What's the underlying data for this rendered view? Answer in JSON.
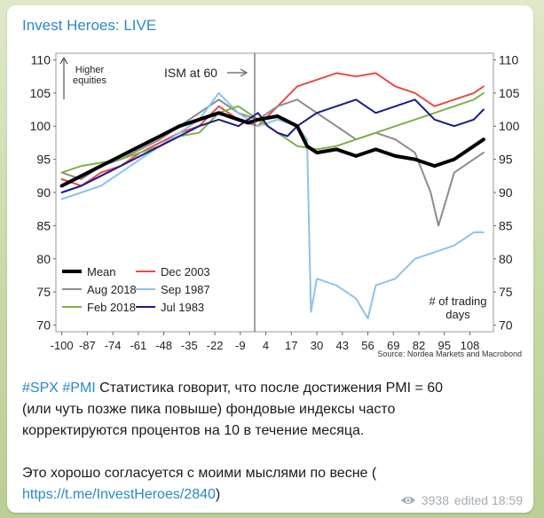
{
  "post": {
    "channel_title": "Invest Heroes: LIVE",
    "hashtags": [
      "#SPX",
      "#PMI"
    ],
    "body_line1": "Статистика говорит, что после достижения PMI = 60",
    "body_line2": "(или чуть позже пика повыше) фондовые индексы часто",
    "body_line3": "корректируются процентов на 10 в течение месяца.",
    "body_line4": "Это хорошо согласуется с моими мыслями по весне (",
    "link": "https://t.me/InvestHeroes/2840",
    "link_suffix": ")",
    "views": "3938",
    "edited": "edited 18:59"
  },
  "chart_data": {
    "type": "line",
    "x_ticks": [
      -100,
      -87,
      -74,
      -61,
      -48,
      -35,
      -22,
      -9,
      4,
      17,
      30,
      43,
      56,
      69,
      82,
      95,
      108
    ],
    "y_ticks": [
      70,
      75,
      80,
      85,
      90,
      95,
      100,
      105,
      110
    ],
    "ylim": [
      69,
      111
    ],
    "xlim": [
      -103,
      120
    ],
    "left_annotation": "Higher\nequities",
    "top_annotation": "ISM at 60",
    "corner_annotation": "# of trading\ndays",
    "source": "Source: Nordea Markets and Macrobond",
    "series": [
      {
        "name": "Mean",
        "color": "#000000",
        "width": 4,
        "x": [
          -100,
          -90,
          -80,
          -70,
          -60,
          -50,
          -40,
          -30,
          -20,
          -10,
          -5,
          0,
          10,
          20,
          25,
          30,
          40,
          50,
          60,
          70,
          80,
          90,
          100,
          110,
          115
        ],
        "y": [
          91,
          92.5,
          94,
          95.5,
          97,
          98.5,
          100,
          101,
          102,
          101,
          100.5,
          101,
          101.5,
          100,
          97,
          96,
          96.5,
          95.5,
          96.5,
          95.5,
          95,
          94,
          95,
          97,
          98
        ]
      },
      {
        "name": "Dec 2003",
        "color": "#e84a4a",
        "width": 2,
        "x": [
          -100,
          -90,
          -80,
          -70,
          -60,
          -50,
          -40,
          -30,
          -20,
          -10,
          0,
          10,
          20,
          30,
          40,
          50,
          60,
          70,
          80,
          90,
          100,
          110,
          115
        ],
        "y": [
          92,
          91,
          93,
          94,
          96,
          97.5,
          99,
          100,
          103,
          101,
          100,
          103,
          106,
          107,
          108,
          107.5,
          108,
          106,
          105,
          103,
          104,
          105,
          106
        ]
      },
      {
        "name": "Aug 2018",
        "color": "#8c8c8c",
        "width": 2,
        "x": [
          -100,
          -90,
          -80,
          -70,
          -60,
          -50,
          -40,
          -30,
          -20,
          -10,
          0,
          10,
          20,
          30,
          40,
          50,
          60,
          70,
          80,
          88,
          92,
          100,
          110,
          115
        ],
        "y": [
          93,
          92,
          94,
          95,
          96.5,
          98,
          100,
          102,
          104,
          102,
          101,
          103,
          104,
          102,
          100,
          98,
          99,
          98,
          96,
          90,
          85,
          93,
          95,
          96
        ]
      },
      {
        "name": "Sep 1987",
        "color": "#8cc4e8",
        "width": 2,
        "x": [
          -100,
          -90,
          -80,
          -70,
          -60,
          -50,
          -40,
          -30,
          -20,
          -10,
          0,
          10,
          20,
          25,
          27,
          30,
          40,
          50,
          56,
          60,
          70,
          80,
          90,
          100,
          110,
          115
        ],
        "y": [
          89,
          90,
          91,
          93,
          95,
          97,
          99,
          101,
          105,
          102,
          100,
          101,
          100,
          98,
          72,
          77,
          76,
          74,
          71,
          76,
          77,
          80,
          81,
          82,
          84,
          84
        ]
      },
      {
        "name": "Feb 2018",
        "color": "#7fb04a",
        "width": 2,
        "x": [
          -100,
          -90,
          -80,
          -70,
          -60,
          -50,
          -40,
          -30,
          -20,
          -10,
          0,
          10,
          20,
          30,
          40,
          50,
          60,
          70,
          80,
          90,
          100,
          110,
          115
        ],
        "y": [
          93,
          94,
          94.5,
          95,
          96,
          97,
          98.5,
          99,
          102,
          103,
          101,
          99,
          97,
          96.5,
          97,
          98,
          99,
          100,
          101,
          102,
          103,
          104,
          105
        ]
      },
      {
        "name": "Jul 1983",
        "color": "#1a1a8c",
        "width": 2,
        "x": [
          -100,
          -90,
          -80,
          -70,
          -60,
          -50,
          -40,
          -30,
          -20,
          -10,
          0,
          5,
          10,
          15,
          20,
          30,
          40,
          50,
          60,
          70,
          80,
          90,
          100,
          110,
          115
        ],
        "y": [
          90,
          91,
          92.5,
          94,
          95.5,
          97,
          98.5,
          100,
          101,
          100,
          102,
          100,
          99,
          98.5,
          100,
          102,
          103,
          104,
          102,
          103,
          104,
          101,
          100,
          101,
          102.5
        ]
      }
    ]
  }
}
